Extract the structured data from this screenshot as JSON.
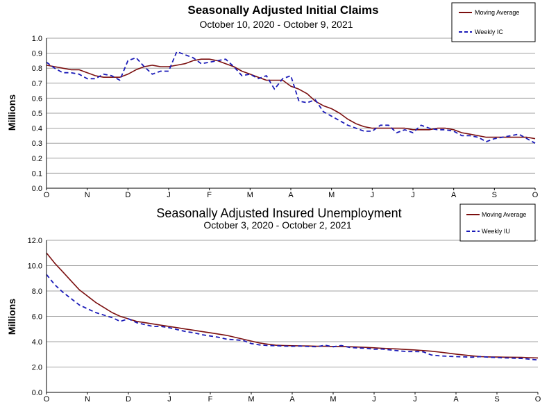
{
  "colors": {
    "moving_average": "#7b0f0f",
    "weekly": "#1a1ab8",
    "grid": "#a0a0a0",
    "plot_bg": "#ffffff"
  },
  "chart_data": [
    {
      "type": "line",
      "title": "Seasonally Adjusted Initial Claims",
      "subtitle": "October 10, 2020 - October 9, 2021",
      "xlabel": "",
      "ylabel": "Millions",
      "ylim": [
        0,
        1.0
      ],
      "yticks": [
        "0.0",
        "0.1",
        "0.2",
        "0.3",
        "0.4",
        "0.5",
        "0.6",
        "0.7",
        "0.8",
        "0.9",
        "1.0"
      ],
      "xticks": [
        "O",
        "N",
        "D",
        "J",
        "F",
        "M",
        "A",
        "M",
        "J",
        "J",
        "A",
        "S",
        "O"
      ],
      "legend": [
        "Moving Average",
        "Weekly IC"
      ],
      "legend_position": "top-right",
      "series": [
        {
          "name": "Moving Average",
          "style": "solid",
          "values": [
            0.82,
            0.81,
            0.8,
            0.79,
            0.79,
            0.77,
            0.75,
            0.74,
            0.74,
            0.74,
            0.76,
            0.79,
            0.81,
            0.82,
            0.81,
            0.81,
            0.82,
            0.83,
            0.85,
            0.86,
            0.86,
            0.85,
            0.83,
            0.81,
            0.78,
            0.76,
            0.74,
            0.72,
            0.72,
            0.72,
            0.68,
            0.66,
            0.63,
            0.58,
            0.55,
            0.53,
            0.5,
            0.46,
            0.43,
            0.41,
            0.4,
            0.4,
            0.4,
            0.4,
            0.4,
            0.39,
            0.39,
            0.39,
            0.4,
            0.4,
            0.39,
            0.37,
            0.36,
            0.35,
            0.34,
            0.34,
            0.34,
            0.34,
            0.34,
            0.34,
            0.33
          ]
        },
        {
          "name": "Weekly IC",
          "style": "dashed",
          "values": [
            0.84,
            0.8,
            0.77,
            0.77,
            0.76,
            0.73,
            0.73,
            0.76,
            0.75,
            0.72,
            0.85,
            0.87,
            0.81,
            0.76,
            0.78,
            0.78,
            0.91,
            0.89,
            0.87,
            0.83,
            0.84,
            0.85,
            0.86,
            0.81,
            0.75,
            0.76,
            0.73,
            0.75,
            0.66,
            0.73,
            0.75,
            0.58,
            0.57,
            0.59,
            0.51,
            0.48,
            0.45,
            0.42,
            0.4,
            0.38,
            0.38,
            0.42,
            0.42,
            0.37,
            0.39,
            0.37,
            0.42,
            0.4,
            0.39,
            0.39,
            0.38,
            0.35,
            0.35,
            0.34,
            0.31,
            0.33,
            0.34,
            0.35,
            0.36,
            0.33,
            0.3
          ]
        }
      ]
    },
    {
      "type": "line",
      "title": "Seasonally Adjusted Insured Unemployment",
      "subtitle": "October 3, 2020 - October 2, 2021",
      "xlabel": "",
      "ylabel": "Millions",
      "ylim": [
        0,
        12.0
      ],
      "yticks": [
        "0.0",
        "2.0",
        "4.0",
        "6.0",
        "8.0",
        "10.0",
        "12.0"
      ],
      "xticks": [
        "O",
        "N",
        "D",
        "J",
        "F",
        "M",
        "A",
        "M",
        "J",
        "J",
        "A",
        "S",
        "O"
      ],
      "legend": [
        "Moving Average",
        "Weekly IU"
      ],
      "legend_position": "top-right",
      "series": [
        {
          "name": "Moving Average",
          "style": "solid",
          "values": [
            11.0,
            10.2,
            9.5,
            8.8,
            8.1,
            7.6,
            7.1,
            6.7,
            6.3,
            6.0,
            5.8,
            5.6,
            5.5,
            5.4,
            5.3,
            5.2,
            5.1,
            5.0,
            4.9,
            4.8,
            4.7,
            4.6,
            4.5,
            4.35,
            4.2,
            4.05,
            3.9,
            3.8,
            3.72,
            3.7,
            3.68,
            3.67,
            3.66,
            3.64,
            3.64,
            3.62,
            3.62,
            3.6,
            3.58,
            3.55,
            3.52,
            3.48,
            3.45,
            3.42,
            3.38,
            3.35,
            3.3,
            3.25,
            3.18,
            3.1,
            3.02,
            2.95,
            2.88,
            2.82,
            2.8,
            2.79,
            2.78,
            2.77,
            2.76,
            2.74,
            2.72
          ]
        },
        {
          "name": "Weekly IU",
          "style": "dashed",
          "values": [
            9.3,
            8.5,
            7.9,
            7.4,
            6.9,
            6.6,
            6.3,
            6.1,
            5.9,
            5.6,
            5.8,
            5.5,
            5.35,
            5.2,
            5.2,
            5.1,
            4.95,
            4.8,
            4.7,
            4.55,
            4.45,
            4.35,
            4.2,
            4.15,
            4.1,
            3.85,
            3.75,
            3.7,
            3.68,
            3.65,
            3.64,
            3.66,
            3.62,
            3.6,
            3.72,
            3.6,
            3.7,
            3.55,
            3.5,
            3.48,
            3.4,
            3.42,
            3.35,
            3.28,
            3.22,
            3.22,
            3.2,
            2.95,
            2.88,
            2.85,
            2.82,
            2.8,
            2.78,
            2.82,
            2.78,
            2.75,
            2.72,
            2.7,
            2.68,
            2.62,
            2.56
          ]
        }
      ]
    }
  ]
}
